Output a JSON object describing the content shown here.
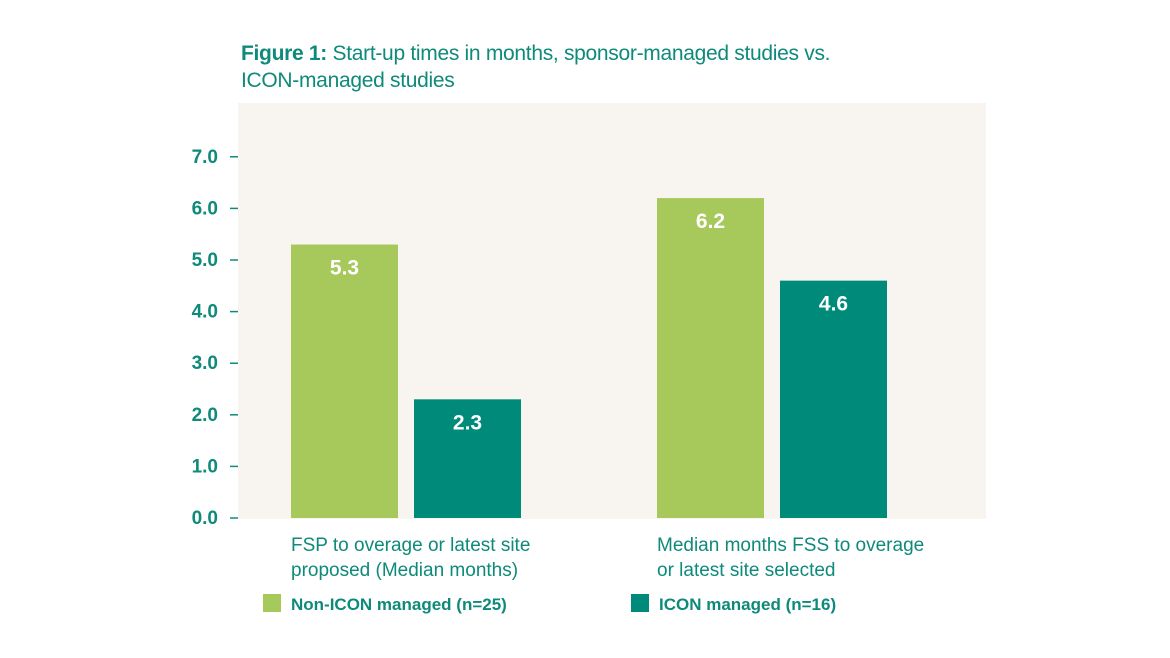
{
  "title": {
    "bold": "Figure 1:",
    "text": " Start-up times in months, sponsor-managed studies vs. ICON-managed studies"
  },
  "colors": {
    "panel": "#f8f4ef",
    "accent": "#0e8a7a",
    "series": [
      "#a7c95c",
      "#008a7a"
    ]
  },
  "chart_data": {
    "type": "bar",
    "title": "Figure 1: Start-up times in months, sponsor-managed studies vs. ICON-managed studies",
    "xlabel": "",
    "ylabel": "",
    "ylim": [
      0,
      7
    ],
    "y_ticks": [
      "0.0",
      "1.0",
      "2.0",
      "3.0",
      "4.0",
      "5.0",
      "6.0",
      "7.0"
    ],
    "grid": false,
    "legend_position": "bottom",
    "categories": [
      [
        "FSP to overage or latest site",
        "proposed (Median months)"
      ],
      [
        "Median months FSS to overage",
        "or latest site selected"
      ]
    ],
    "series": [
      {
        "name": "Non-ICON managed (n=25)",
        "values": [
          5.3,
          6.2
        ],
        "labels": [
          "5.3",
          "6.2"
        ]
      },
      {
        "name": "ICON managed (n=16)",
        "values": [
          2.3,
          4.6
        ],
        "labels": [
          "2.3",
          "4.6"
        ]
      }
    ]
  }
}
